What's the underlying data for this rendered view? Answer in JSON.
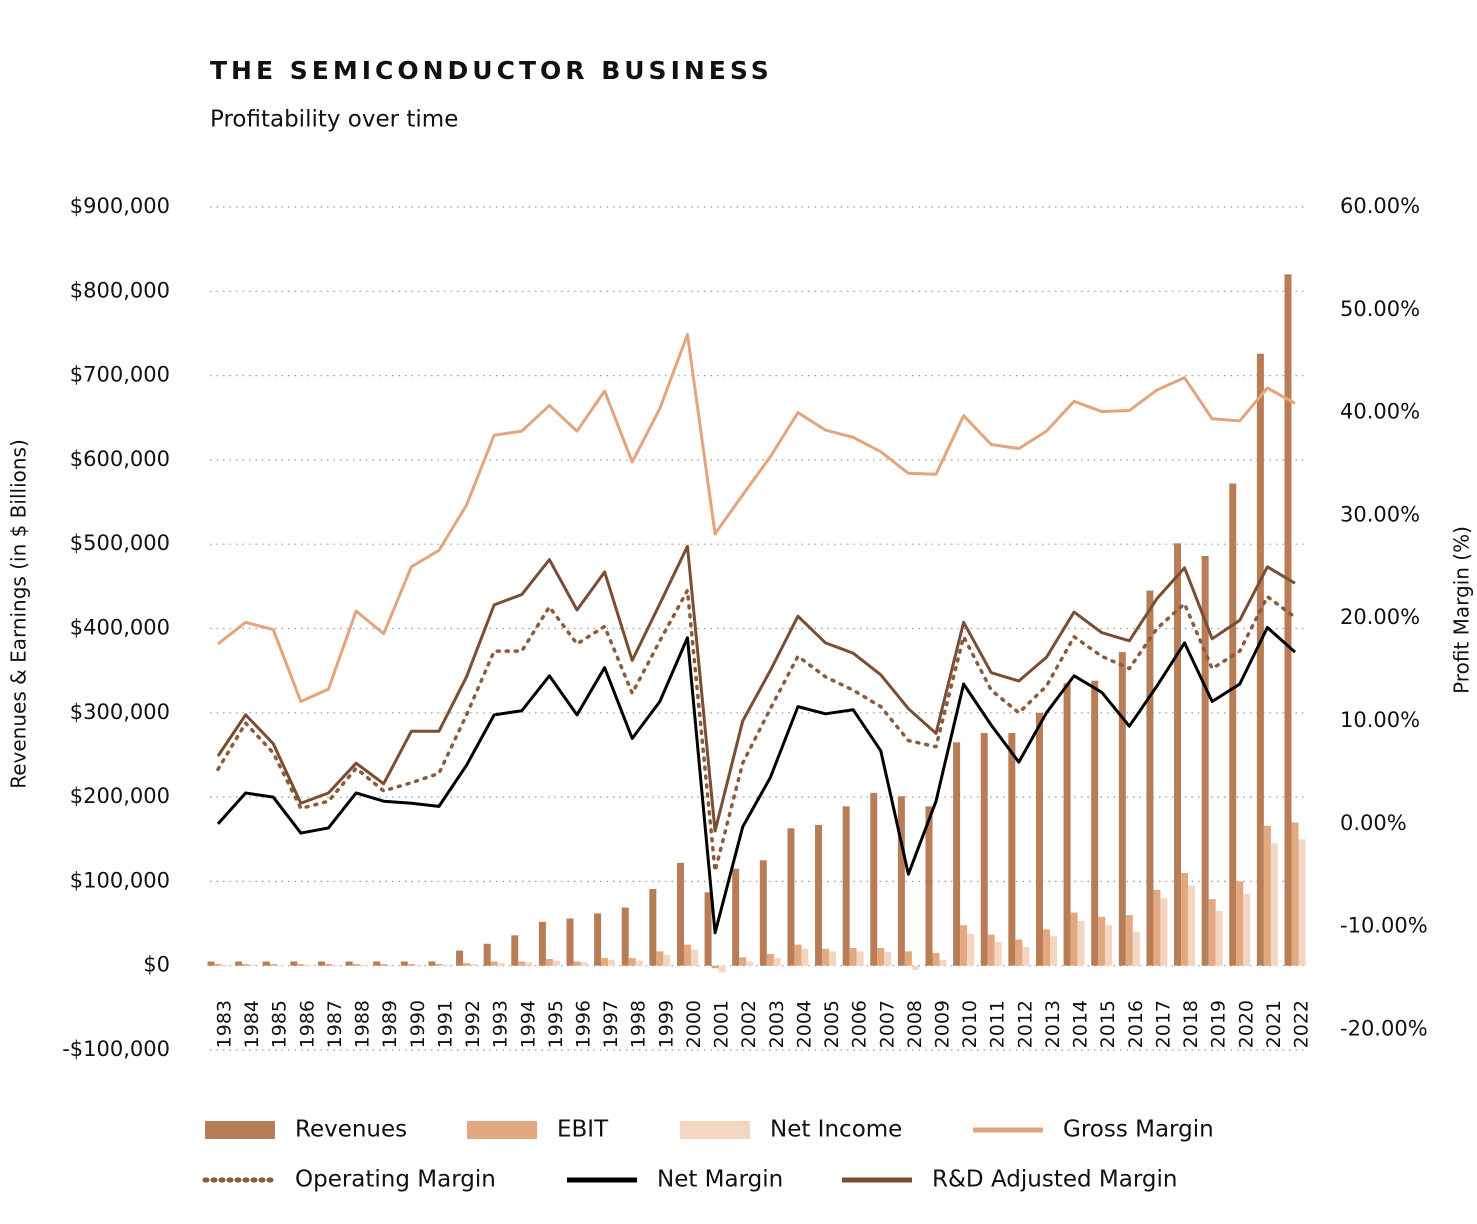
{
  "chart_data": {
    "type": "combo",
    "title": "THE SEMICONDUCTOR BUSINESS",
    "subtitle": "Profitability over time",
    "y_label": "Revenues & Earnings (in $ Billions)",
    "y2_label": "Profit Margin (%)",
    "categories": [
      "1983",
      "1984",
      "1985",
      "1986",
      "1987",
      "1988",
      "1989",
      "1990",
      "1991",
      "1992",
      "1993",
      "1994",
      "1995",
      "1996",
      "1997",
      "1998",
      "1999",
      "2000",
      "2001",
      "2002",
      "2003",
      "2004",
      "2005",
      "2006",
      "2007",
      "2008",
      "2009",
      "2010",
      "2011",
      "2012",
      "2013",
      "2014",
      "2015",
      "2016",
      "2017",
      "2018",
      "2019",
      "2020",
      "2021",
      "2022"
    ],
    "ylim": [
      -100000,
      900000
    ],
    "yticks": [
      {
        "value": -100000,
        "label": "-$100,000"
      },
      {
        "value": 0,
        "label": "$0"
      },
      {
        "value": 100000,
        "label": "$100,000"
      },
      {
        "value": 200000,
        "label": "$200,000"
      },
      {
        "value": 300000,
        "label": "$300,000"
      },
      {
        "value": 400000,
        "label": "$400,000"
      },
      {
        "value": 500000,
        "label": "$500,000"
      },
      {
        "value": 600000,
        "label": "$600,000"
      },
      {
        "value": 700000,
        "label": "$700,000"
      },
      {
        "value": 800000,
        "label": "$800,000"
      },
      {
        "value": 900000,
        "label": "$900,000"
      }
    ],
    "y2lim": [
      -22,
      60
    ],
    "y2ticks": [
      {
        "value": -20,
        "label": "-20.00%"
      },
      {
        "value": -10,
        "label": "-10.00%"
      },
      {
        "value": 0,
        "label": "0.00%"
      },
      {
        "value": 10,
        "label": "10.00%"
      },
      {
        "value": 20,
        "label": "20.00%"
      },
      {
        "value": 30,
        "label": "30.00%"
      },
      {
        "value": 40,
        "label": "40.00%"
      },
      {
        "value": 50,
        "label": "50.00%"
      },
      {
        "value": 60,
        "label": "60.00%"
      }
    ],
    "grid": true,
    "legend": "bottom",
    "series": [
      {
        "name": "Revenues",
        "type": "bar",
        "color": "#b67d56",
        "values": [
          5000,
          5000,
          5000,
          5000,
          5000,
          5000,
          5000,
          5000,
          5000,
          18000,
          26000,
          36000,
          52000,
          56000,
          62000,
          69000,
          91000,
          122000,
          87000,
          115000,
          125000,
          163000,
          167000,
          189000,
          205000,
          201000,
          189000,
          265000,
          276000,
          276000,
          300000,
          335000,
          338000,
          372000,
          445000,
          501000,
          486000,
          572000,
          726000,
          820000
        ]
      },
      {
        "name": "EBIT",
        "type": "bar",
        "color": "#e3a880",
        "values": [
          2000,
          2000,
          2000,
          2000,
          2000,
          2000,
          2000,
          2000,
          2000,
          3000,
          5000,
          5000,
          8000,
          5000,
          9000,
          9000,
          17000,
          25000,
          -3000,
          10000,
          14000,
          25000,
          20000,
          21000,
          21000,
          17000,
          15000,
          48000,
          37000,
          31000,
          43000,
          63000,
          58000,
          60000,
          90000,
          110000,
          79000,
          100000,
          166000,
          170000
        ]
      },
      {
        "name": "Net Income",
        "type": "bar",
        "color": "#f2d6c2",
        "values": [
          1000,
          1000,
          1000,
          1000,
          1000,
          1000,
          1000,
          1000,
          1000,
          2000,
          3000,
          4000,
          6000,
          4000,
          7000,
          6000,
          13000,
          19000,
          -8000,
          5000,
          9000,
          20000,
          17000,
          17000,
          16000,
          -5000,
          7000,
          38000,
          28000,
          22000,
          35000,
          53000,
          48000,
          40000,
          80000,
          95000,
          65000,
          85000,
          145000,
          150000
        ]
      },
      {
        "name": "Gross Margin",
        "type": "line",
        "axis": "y2",
        "color": "#e2a57c",
        "values": [
          17.5,
          19.6,
          18.9,
          11.9,
          13.1,
          20.7,
          18.5,
          25,
          26.6,
          31,
          37.8,
          38.2,
          40.7,
          38.2,
          42.1,
          35.2,
          40.4,
          47.6,
          28.2,
          32,
          35.7,
          40,
          38.3,
          37.6,
          36.2,
          34.1,
          34,
          39.7,
          36.9,
          36.5,
          38.2,
          41.1,
          40.1,
          40.2,
          42.2,
          43.4,
          39.4,
          39.2,
          42.4,
          40.9
        ]
      },
      {
        "name": "Operating Margin",
        "type": "line",
        "axis": "y2",
        "color": "#8c5a3c",
        "dash": "dotted",
        "values": [
          5.3,
          9.8,
          6.9,
          1.5,
          2.2,
          5.4,
          3.2,
          4,
          4.9,
          10.6,
          16.8,
          16.8,
          21.1,
          17.5,
          19.2,
          12.7,
          17.8,
          22.7,
          -4.6,
          5.9,
          11.2,
          16.3,
          14.3,
          13,
          11.4,
          8.1,
          7.5,
          18.2,
          13,
          10.8,
          13.4,
          18.2,
          16.3,
          15.1,
          19,
          21.4,
          15.1,
          16.8,
          22.1,
          20.1
        ]
      },
      {
        "name": "Net Margin",
        "type": "line",
        "axis": "y2",
        "color": "#000000",
        "values": [
          0,
          3,
          2.6,
          -0.9,
          -0.4,
          3,
          2.2,
          2,
          1.7,
          5.7,
          10.6,
          11,
          14.4,
          10.6,
          15.2,
          8.3,
          11.9,
          18.1,
          -10.6,
          -0.3,
          4.5,
          11.4,
          10.7,
          11.1,
          7.1,
          -4.9,
          2.2,
          13.6,
          9.6,
          6,
          10.8,
          14.4,
          12.8,
          9.5,
          13.4,
          17.6,
          11.9,
          13.6,
          19.1,
          16.7
        ]
      },
      {
        "name": "R&D Adjusted Margin",
        "type": "line",
        "axis": "y2",
        "color": "#7a4e34",
        "values": [
          6.6,
          10.6,
          7.8,
          2,
          3,
          5.9,
          3.9,
          9,
          9,
          14.3,
          21.3,
          22.3,
          25.7,
          20.8,
          24.5,
          15.9,
          21.4,
          27,
          -0.7,
          10,
          14.9,
          20.2,
          17.6,
          16.6,
          14.5,
          11.2,
          8.8,
          19.6,
          14.7,
          13.9,
          16.2,
          20.6,
          18.6,
          17.8,
          21.9,
          24.9,
          18,
          19.8,
          25,
          23.4
        ]
      }
    ]
  }
}
